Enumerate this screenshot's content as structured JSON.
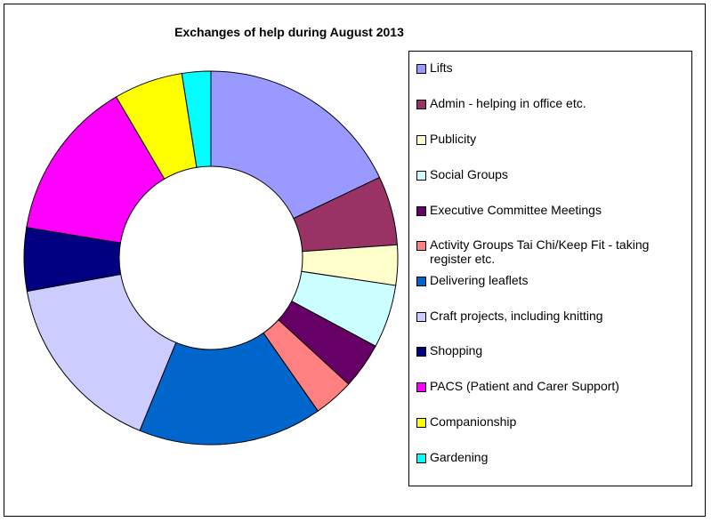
{
  "chart_data": {
    "type": "pie",
    "title": "Exchanges of help during August 2013",
    "categories": [
      "Lifts",
      "Admin - helping in office etc.",
      "Publicity",
      "Social Groups",
      "Executive Committee Meetings",
      "Activity Groups Tai Chi/Keep Fit - taking register etc.",
      "Delivering leaflets",
      "Craft projects, including knitting",
      "Shopping",
      "PACS (Patient and Carer Support)",
      "Companionship",
      "Gardening"
    ],
    "values": [
      18.0,
      6.0,
      3.5,
      5.5,
      4.0,
      3.5,
      16.0,
      16.0,
      5.5,
      14.0,
      6.0,
      2.5
    ],
    "colors": [
      "#9999FF",
      "#993366",
      "#FFFFCC",
      "#CCFFFF",
      "#660066",
      "#FF8080",
      "#0066CC",
      "#CCCCFF",
      "#000080",
      "#FF00FF",
      "#FFFF00",
      "#00FFFF"
    ],
    "hole": true,
    "legend": "right"
  }
}
